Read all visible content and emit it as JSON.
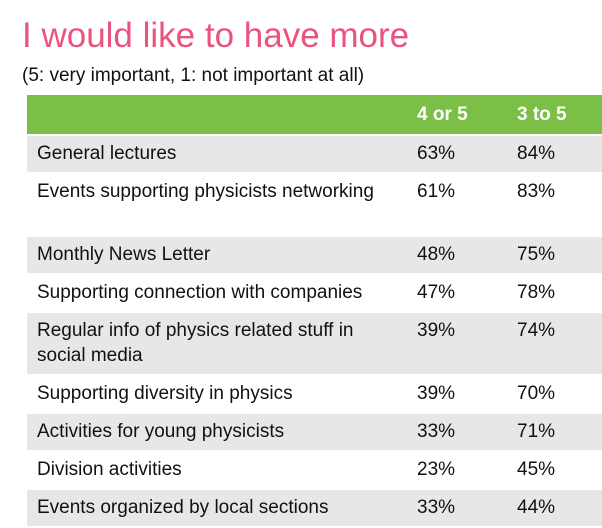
{
  "title": "I would like to have more",
  "subtitle": "(5: very important, 1: not important at all)",
  "table": {
    "headers": [
      "",
      "4 or 5",
      "3 to 5"
    ],
    "rows": [
      {
        "label": "General lectures",
        "a": "63%",
        "b": "84%"
      },
      {
        "label": "Events supporting physicists networking",
        "a": "61%",
        "b": "83%"
      },
      {
        "label": "Monthly News Letter",
        "a": "48%",
        "b": "75%"
      },
      {
        "label": "Supporting connection with companies",
        "a": "47%",
        "b": "78%"
      },
      {
        "label": "Regular info of physics related stuff in social media",
        "a": "39%",
        "b": "74%"
      },
      {
        "label": "Supporting diversity in physics",
        "a": "39%",
        "b": "70%"
      },
      {
        "label": "Activities for young physicists",
        "a": "33%",
        "b": "71%"
      },
      {
        "label": "Division activities",
        "a": "23%",
        "b": "45%"
      },
      {
        "label": "Events organized by local sections",
        "a": "33%",
        "b": "44%"
      }
    ]
  },
  "colors": {
    "title": "#e9547f",
    "header_bg": "#7cbf47",
    "row_shade": "#e7e7e7"
  }
}
